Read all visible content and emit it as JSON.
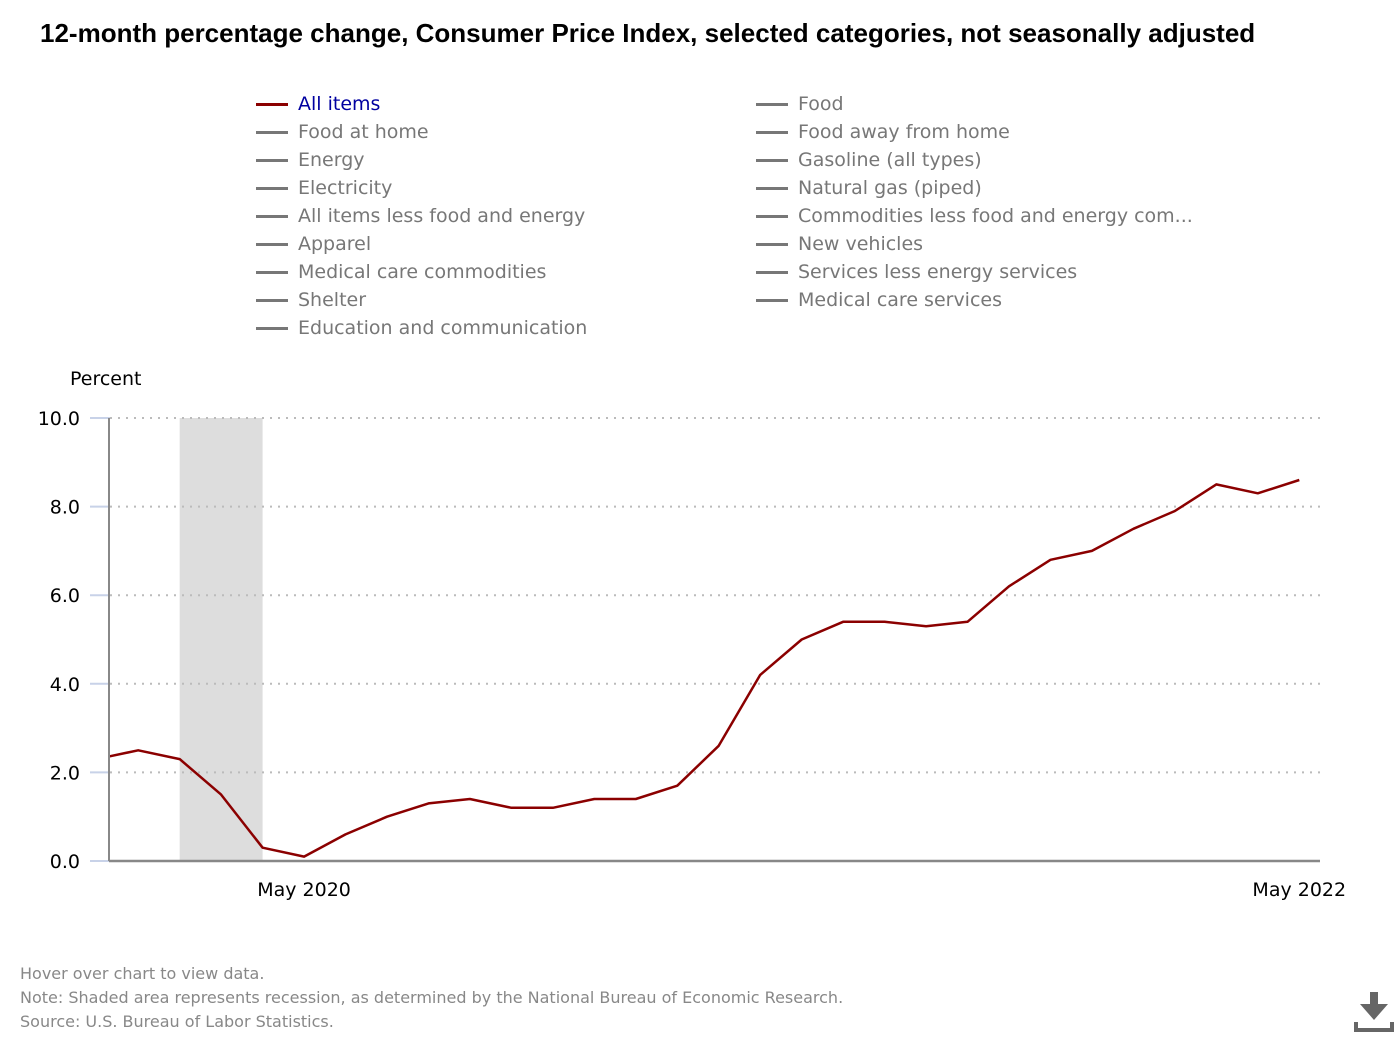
{
  "title": "12-month percentage change, Consumer Price Index, selected categories, not seasonally adjusted",
  "legend": {
    "left": [
      "All items",
      "Food at home",
      "Energy",
      "Electricity",
      "All items less food and energy",
      "Apparel",
      "Medical care commodities",
      "Shelter",
      "Education and communication"
    ],
    "right": [
      "Food",
      "Food away from home",
      "Gasoline (all types)",
      "Natural gas (piped)",
      "Commodities less food and energy com...",
      "New vehicles",
      "Services less energy services",
      "Medical care services"
    ],
    "active": "All items"
  },
  "colors": {
    "series": "#8b0000",
    "active_legend_text": "#0000a0",
    "inactive": "#777777",
    "recession": "#dddddd"
  },
  "chart_data": {
    "type": "line",
    "title": "12-month percentage change, Consumer Price Index, selected categories, not seasonally adjusted",
    "ylabel": "Percent",
    "xlabel": "",
    "ylim": [
      0,
      10
    ],
    "yticks": [
      "0.0",
      "2.0",
      "4.0",
      "6.0",
      "8.0",
      "10.0"
    ],
    "xtick_labels": [
      {
        "label": "May 2020",
        "index": 4
      },
      {
        "label": "May 2022",
        "index": 28
      }
    ],
    "x_index_range": [
      -0.68,
      28.5
    ],
    "grid": true,
    "legend_position": "top",
    "recession": {
      "start": "Feb 2020",
      "end": "Apr 2020",
      "start_index": 1,
      "end_index": 3
    },
    "series": [
      {
        "name": "All items",
        "x": [
          "Dec 2019",
          "Jan 2020",
          "Feb 2020",
          "Mar 2020",
          "Apr 2020",
          "May 2020",
          "Jun 2020",
          "Jul 2020",
          "Aug 2020",
          "Sep 2020",
          "Oct 2020",
          "Nov 2020",
          "Dec 2020",
          "Jan 2021",
          "Feb 2021",
          "Mar 2021",
          "Apr 2021",
          "May 2021",
          "Jun 2021",
          "Jul 2021",
          "Aug 2021",
          "Sep 2021",
          "Oct 2021",
          "Nov 2021",
          "Dec 2021",
          "Jan 2022",
          "Feb 2022",
          "Mar 2022",
          "Apr 2022",
          "May 2022"
        ],
        "index_start": -1,
        "values": [
          2.3,
          2.5,
          2.3,
          1.5,
          0.3,
          0.1,
          0.6,
          1.0,
          1.3,
          1.4,
          1.2,
          1.2,
          1.4,
          1.4,
          1.7,
          2.6,
          4.2,
          5.0,
          5.4,
          5.4,
          5.3,
          5.4,
          6.2,
          6.8,
          7.0,
          7.5,
          7.9,
          8.5,
          8.3,
          8.6
        ]
      }
    ]
  },
  "notes": {
    "hover": "Hover over chart to view data.",
    "note": "Note: Shaded area represents recession, as determined by the National Bureau of Economic Research.",
    "source": "Source: U.S. Bureau of Labor Statistics."
  }
}
